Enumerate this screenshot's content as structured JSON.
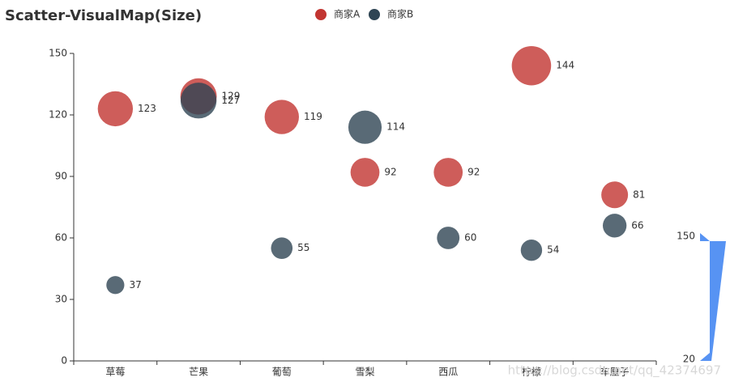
{
  "chart_data": {
    "type": "scatter",
    "title": "Scatter-VisualMap(Size)",
    "categories": [
      "草莓",
      "芒果",
      "葡萄",
      "雪梨",
      "西瓜",
      "柠檬",
      "车厘子"
    ],
    "series": [
      {
        "name": "商家A",
        "color": "#c23531",
        "values": [
          123,
          129,
          119,
          92,
          92,
          144,
          81
        ]
      },
      {
        "name": "商家B",
        "color": "#2f4554",
        "values": [
          37,
          127,
          55,
          114,
          60,
          54,
          66
        ]
      }
    ],
    "ylim": [
      0,
      150
    ],
    "yticks": [
      0,
      30,
      60,
      90,
      120,
      150
    ],
    "visual_map": {
      "min": 20,
      "max": 150,
      "color": "#5793f3"
    },
    "watermark": "https://blog.csdn.net/qq_42374697"
  }
}
